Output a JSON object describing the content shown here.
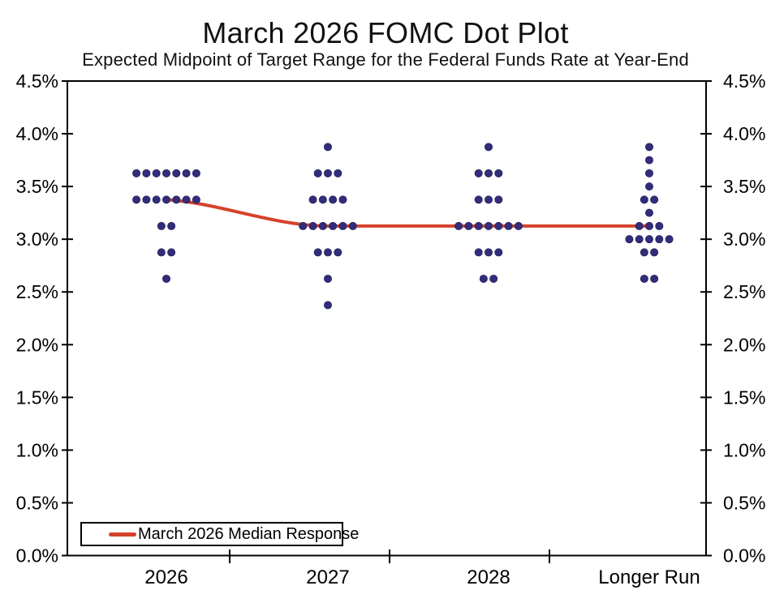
{
  "page": {
    "title": "March 2026 FOMC Dot Plot",
    "subtitle": "Expected Midpoint of Target Range for the Federal Funds Rate at Year-End"
  },
  "legend": {
    "label": "March 2026 Median Response"
  },
  "colors": {
    "background": "#ffffff",
    "axis": "#000000",
    "dot_fill": "#322d7b",
    "dot_edge": "#27215c",
    "median_line": "#d5422a"
  },
  "chart_data": {
    "type": "scatter",
    "title": "March 2026 FOMC Dot Plot",
    "subtitle": "Expected Midpoint of Target Range for the Federal Funds Rate at Year-End",
    "grid": false,
    "legend_position": "bottom-left",
    "categories": [
      "2026",
      "2027",
      "2028",
      "Longer Run"
    ],
    "y_axis": {
      "min": 0.0,
      "max": 4.5,
      "tick_step": 0.5,
      "unit": "%",
      "sides": "both",
      "tick_labels": [
        "4.5%",
        "4.0%",
        "3.5%",
        "3.0%",
        "2.5%",
        "2.0%",
        "1.5%",
        "1.0%",
        "0.5%",
        "0.0%"
      ]
    },
    "dot_groups": [
      {
        "category": "2026",
        "dots": [
          {
            "rate": 3.625,
            "count": 7
          },
          {
            "rate": 3.375,
            "count": 7
          },
          {
            "rate": 3.125,
            "count": 2
          },
          {
            "rate": 2.875,
            "count": 2
          },
          {
            "rate": 2.625,
            "count": 1
          }
        ]
      },
      {
        "category": "2027",
        "dots": [
          {
            "rate": 3.875,
            "count": 1
          },
          {
            "rate": 3.625,
            "count": 3
          },
          {
            "rate": 3.375,
            "count": 4
          },
          {
            "rate": 3.125,
            "count": 6
          },
          {
            "rate": 2.875,
            "count": 3
          },
          {
            "rate": 2.625,
            "count": 1
          },
          {
            "rate": 2.375,
            "count": 1
          }
        ]
      },
      {
        "category": "2028",
        "dots": [
          {
            "rate": 3.875,
            "count": 1
          },
          {
            "rate": 3.625,
            "count": 3
          },
          {
            "rate": 3.375,
            "count": 3
          },
          {
            "rate": 3.125,
            "count": 7
          },
          {
            "rate": 2.875,
            "count": 3
          },
          {
            "rate": 2.625,
            "count": 2
          }
        ]
      },
      {
        "category": "Longer Run",
        "dots": [
          {
            "rate": 3.875,
            "count": 1
          },
          {
            "rate": 3.75,
            "count": 1
          },
          {
            "rate": 3.625,
            "count": 1
          },
          {
            "rate": 3.5,
            "count": 1
          },
          {
            "rate": 3.375,
            "count": 2
          },
          {
            "rate": 3.25,
            "count": 1
          },
          {
            "rate": 3.125,
            "count": 3
          },
          {
            "rate": 3.0,
            "count": 5
          },
          {
            "rate": 2.875,
            "count": 2
          },
          {
            "rate": 2.625,
            "count": 2
          }
        ]
      }
    ],
    "series": [
      {
        "name": "March 2026 Median Response",
        "type": "line",
        "smoothed": true,
        "values": [
          3.375,
          3.125,
          3.125,
          3.125
        ],
        "color": "#d5422a"
      }
    ]
  }
}
